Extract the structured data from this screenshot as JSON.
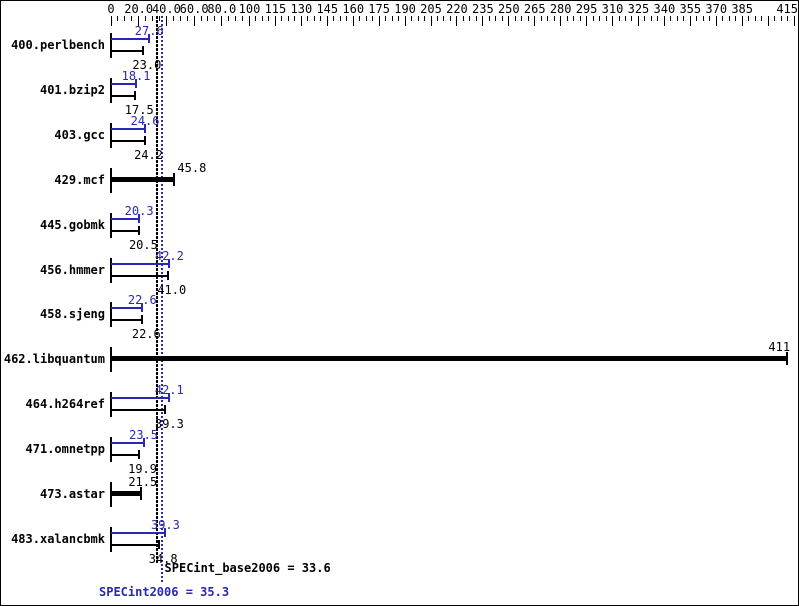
{
  "window": {
    "title": "SPEC CPU2006 integer results chart"
  },
  "colors": {
    "peak_blue": "#2828b4",
    "base_black": "#000000",
    "background": "#ffffff"
  },
  "chart_data": {
    "type": "bar",
    "orientation": "horizontal",
    "title": "",
    "axis": {
      "position": "top",
      "range": [
        0,
        415
      ],
      "major_tick_values": [
        0,
        20,
        40,
        60,
        80,
        100,
        115,
        130,
        145,
        160,
        175,
        190,
        205,
        220,
        235,
        250,
        265,
        280,
        295,
        310,
        325,
        340,
        355,
        370,
        385,
        400,
        415
      ],
      "tick_labels": [
        "0",
        "20.0",
        "40.0",
        "60.0",
        "80.0",
        "100",
        "115",
        "130",
        "145",
        "160",
        "175",
        "190",
        "205",
        "220",
        "235",
        "250",
        "265",
        "280",
        "295",
        "310",
        "325",
        "340",
        "355",
        "370",
        "385",
        "",
        "415"
      ],
      "minor_ticks_per_interval": 3,
      "scale_note": "piecewise scale: 0-100 in steps of 20, 100-415 in steps of 15, equal pixel spacing per major interval",
      "grid": false
    },
    "series_meaning": {
      "blue_bar": "SPECint2006 (peak) ratio",
      "black_bar": "SPECint_base2006 (base) ratio",
      "thick_black_bar": "single reported ratio"
    },
    "rows": [
      {
        "name": "400.perlbench",
        "peak": 27.6,
        "base": 23.0,
        "peak_label": "27.6",
        "base_label": "23.0"
      },
      {
        "name": "401.bzip2",
        "peak": 18.1,
        "base": 17.5,
        "peak_label": "18.1",
        "base_label": "17.5"
      },
      {
        "name": "403.gcc",
        "peak": 24.6,
        "base": 24.2,
        "peak_label": "24.6",
        "base_label": "24.2"
      },
      {
        "name": "429.mcf",
        "single": 45.8,
        "single_label": "45.8",
        "label_align": "right-of-end"
      },
      {
        "name": "445.gobmk",
        "peak": 20.3,
        "base": 20.5,
        "peak_label": "20.3",
        "base_label": "20.5"
      },
      {
        "name": "456.hmmer",
        "peak": 42.2,
        "base": 41.0,
        "peak_label": "42.2",
        "base_label": "41.0"
      },
      {
        "name": "458.sjeng",
        "peak": 22.6,
        "base": 22.6,
        "peak_label": "22.6",
        "base_label": "22.6"
      },
      {
        "name": "462.libquantum",
        "single": 411,
        "single_label": "411",
        "label_align": "left-of-end"
      },
      {
        "name": "464.h264ref",
        "peak": 42.1,
        "base": 39.3,
        "peak_label": "42.1",
        "base_label": "39.3"
      },
      {
        "name": "471.omnetpp",
        "peak": 23.5,
        "base": 19.9,
        "peak_label": "23.5",
        "base_label": "19.9"
      },
      {
        "name": "473.astar",
        "single": 21.5,
        "single_label": "21.5",
        "label_align": "center-on-end"
      },
      {
        "name": "483.xalancbmk",
        "peak": 39.3,
        "base": 34.8,
        "peak_label": "39.3",
        "base_label": "34.8"
      }
    ],
    "means": {
      "base": {
        "text": "SPECint_base2006 = 33.6",
        "value": 33.6
      },
      "peak": {
        "text": "SPECint2006 = 35.3",
        "value": 35.3
      }
    }
  }
}
